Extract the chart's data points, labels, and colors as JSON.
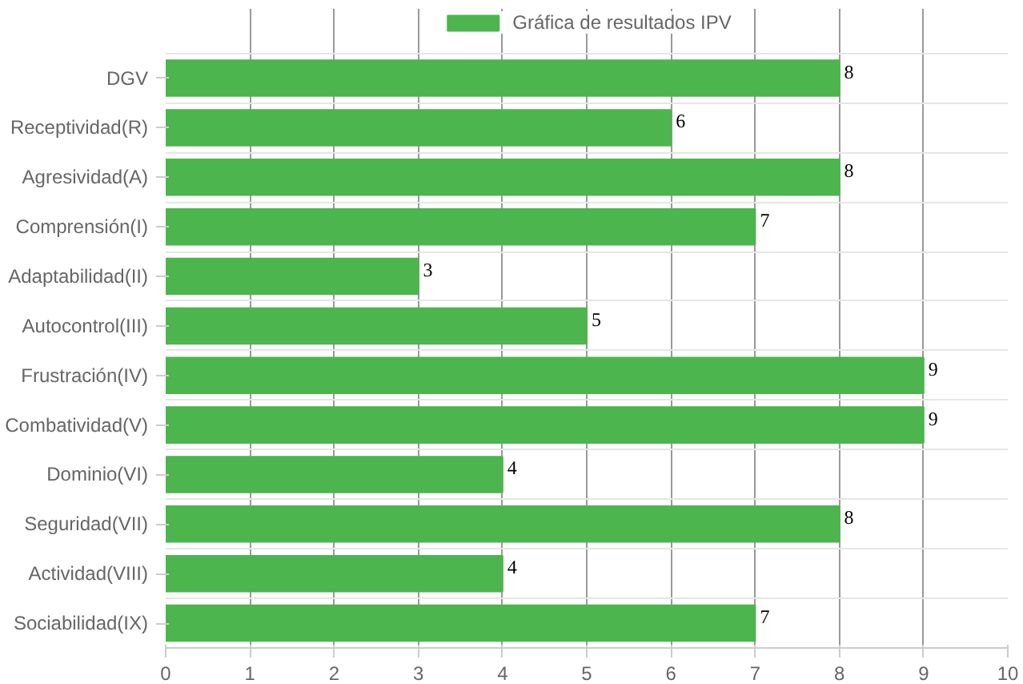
{
  "chart_data": {
    "type": "bar",
    "orientation": "horizontal",
    "categories": [
      "DGV",
      "Receptividad(R)",
      "Agresividad(A)",
      "Comprensión(I)",
      "Adaptabilidad(II)",
      "Autocontrol(III)",
      "Frustración(IV)",
      "Combatividad(V)",
      "Dominio(VI)",
      "Seguridad(VII)",
      "Actividad(VIII)",
      "Sociabilidad(IX)"
    ],
    "series": [
      {
        "name": "Gráfica de resultados IPV",
        "color": "#4db54d",
        "values": [
          8,
          6,
          8,
          7,
          3,
          5,
          9,
          9,
          4,
          8,
          4,
          7
        ]
      }
    ],
    "xlim": [
      0,
      10
    ],
    "xticks": [
      0,
      1,
      2,
      3,
      4,
      5,
      6,
      7,
      8,
      9,
      10
    ],
    "data_labels": true,
    "grid": true,
    "legend": "top"
  }
}
